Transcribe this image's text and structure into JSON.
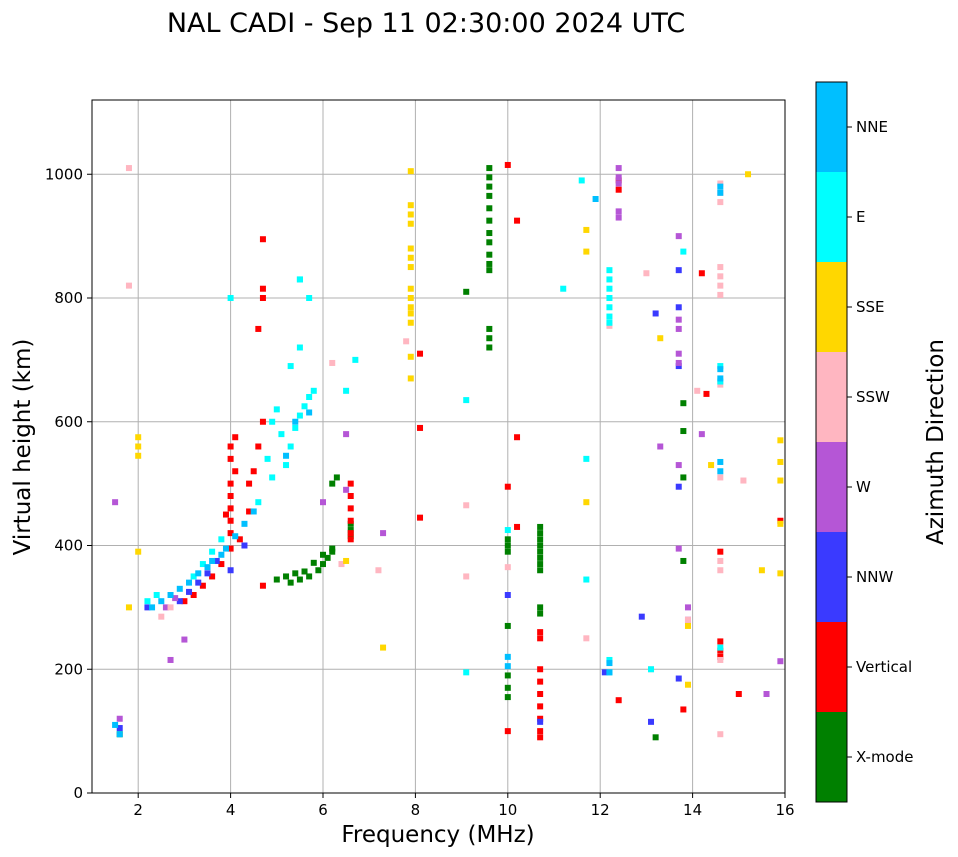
{
  "chart_data": {
    "type": "scatter",
    "title": "NAL CADI - Sep 11 02:30:00 2024 UTC",
    "xlabel": "Frequency (MHz)",
    "ylabel": "Virtual height (km)",
    "xlim": [
      1,
      16
    ],
    "ylim": [
      0,
      1120
    ],
    "xticks": [
      2,
      4,
      6,
      8,
      10,
      12,
      14,
      16
    ],
    "yticks": [
      0,
      200,
      400,
      600,
      800,
      1000
    ],
    "grid": true,
    "colorbar": {
      "label": "Azimuth Direction",
      "categories": [
        {
          "name": "X-mode",
          "color": "#008000"
        },
        {
          "name": "Vertical",
          "color": "#ff0000"
        },
        {
          "name": "NNW",
          "color": "#3a3aff"
        },
        {
          "name": "W",
          "color": "#b556d6"
        },
        {
          "name": "SSW",
          "color": "#ffb6c1"
        },
        {
          "name": "SSE",
          "color": "#ffd700"
        },
        {
          "name": "E",
          "color": "#00ffff"
        },
        {
          "name": "NNE",
          "color": "#00bfff"
        }
      ]
    },
    "series": [
      {
        "name": "X-mode",
        "points": [
          [
            5.3,
            340
          ],
          [
            5.5,
            345
          ],
          [
            5.7,
            350
          ],
          [
            5.9,
            360
          ],
          [
            6.0,
            370
          ],
          [
            6.1,
            380
          ],
          [
            6.2,
            390
          ],
          [
            5.6,
            358
          ],
          [
            5.8,
            372
          ],
          [
            6.0,
            385
          ],
          [
            6.2,
            395
          ],
          [
            5.4,
            355
          ],
          [
            5.2,
            350
          ],
          [
            5.0,
            345
          ],
          [
            6.6,
            415
          ],
          [
            6.6,
            425
          ],
          [
            6.6,
            435
          ],
          [
            6.2,
            500
          ],
          [
            6.3,
            510
          ],
          [
            9.6,
            1010
          ],
          [
            9.6,
            995
          ],
          [
            9.6,
            980
          ],
          [
            9.6,
            965
          ],
          [
            9.6,
            945
          ],
          [
            9.6,
            925
          ],
          [
            9.6,
            905
          ],
          [
            9.6,
            890
          ],
          [
            9.6,
            870
          ],
          [
            9.6,
            855
          ],
          [
            9.6,
            845
          ],
          [
            9.1,
            810
          ],
          [
            9.6,
            750
          ],
          [
            9.6,
            735
          ],
          [
            9.6,
            720
          ],
          [
            10.0,
            410
          ],
          [
            10.0,
            400
          ],
          [
            10.0,
            390
          ],
          [
            10.7,
            430
          ],
          [
            10.7,
            420
          ],
          [
            10.7,
            410
          ],
          [
            10.7,
            400
          ],
          [
            10.7,
            390
          ],
          [
            10.7,
            380
          ],
          [
            10.7,
            370
          ],
          [
            10.7,
            360
          ],
          [
            10.7,
            300
          ],
          [
            10.7,
            290
          ],
          [
            10.0,
            270
          ],
          [
            10.0,
            190
          ],
          [
            10.0,
            170
          ],
          [
            10.0,
            155
          ],
          [
            13.2,
            90
          ],
          [
            13.8,
            630
          ],
          [
            13.8,
            585
          ],
          [
            13.8,
            510
          ],
          [
            13.8,
            375
          ],
          [
            1.6,
            95
          ]
        ]
      },
      {
        "name": "Vertical",
        "points": [
          [
            3.0,
            310
          ],
          [
            3.2,
            320
          ],
          [
            3.4,
            335
          ],
          [
            3.6,
            350
          ],
          [
            3.8,
            370
          ],
          [
            4.0,
            395
          ],
          [
            4.0,
            420
          ],
          [
            4.0,
            440
          ],
          [
            4.0,
            460
          ],
          [
            4.0,
            480
          ],
          [
            4.0,
            500
          ],
          [
            4.1,
            520
          ],
          [
            4.0,
            540
          ],
          [
            4.0,
            560
          ],
          [
            4.1,
            575
          ],
          [
            4.4,
            500
          ],
          [
            4.5,
            520
          ],
          [
            4.6,
            560
          ],
          [
            4.7,
            600
          ],
          [
            4.7,
            800
          ],
          [
            4.7,
            815
          ],
          [
            4.6,
            750
          ],
          [
            4.7,
            895
          ],
          [
            4.7,
            335
          ],
          [
            6.6,
            500
          ],
          [
            6.6,
            480
          ],
          [
            6.6,
            460
          ],
          [
            6.6,
            440
          ],
          [
            6.6,
            420
          ],
          [
            6.6,
            410
          ],
          [
            8.1,
            445
          ],
          [
            8.1,
            590
          ],
          [
            8.1,
            710
          ],
          [
            10.0,
            1015
          ],
          [
            10.2,
            925
          ],
          [
            10.2,
            575
          ],
          [
            10.2,
            430
          ],
          [
            10.0,
            495
          ],
          [
            10.0,
            100
          ],
          [
            10.7,
            260
          ],
          [
            10.7,
            250
          ],
          [
            10.7,
            200
          ],
          [
            10.7,
            180
          ],
          [
            10.7,
            160
          ],
          [
            10.7,
            140
          ],
          [
            10.7,
            120
          ],
          [
            10.7,
            100
          ],
          [
            10.7,
            90
          ],
          [
            12.4,
            990
          ],
          [
            12.4,
            975
          ],
          [
            12.4,
            150
          ],
          [
            13.8,
            135
          ],
          [
            14.2,
            840
          ],
          [
            14.3,
            645
          ],
          [
            14.6,
            390
          ],
          [
            14.6,
            245
          ],
          [
            14.6,
            230
          ],
          [
            14.6,
            220
          ],
          [
            15.0,
            160
          ],
          [
            15.9,
            440
          ],
          [
            4.4,
            455
          ],
          [
            3.9,
            450
          ],
          [
            4.2,
            410
          ]
        ]
      },
      {
        "name": "NNW",
        "points": [
          [
            2.9,
            310
          ],
          [
            3.1,
            325
          ],
          [
            3.3,
            340
          ],
          [
            3.5,
            355
          ],
          [
            3.7,
            375
          ],
          [
            4.0,
            360
          ],
          [
            4.3,
            400
          ],
          [
            10.0,
            320
          ],
          [
            10.7,
            115
          ],
          [
            12.1,
            195
          ],
          [
            12.9,
            285
          ],
          [
            13.1,
            115
          ],
          [
            13.2,
            775
          ],
          [
            13.7,
            845
          ],
          [
            13.7,
            785
          ],
          [
            13.7,
            690
          ],
          [
            13.7,
            495
          ],
          [
            13.7,
            185
          ],
          [
            1.6,
            105
          ],
          [
            2.2,
            300
          ]
        ]
      },
      {
        "name": "W",
        "points": [
          [
            2.6,
            300
          ],
          [
            2.8,
            315
          ],
          [
            2.7,
            215
          ],
          [
            3.0,
            248
          ],
          [
            1.5,
            470
          ],
          [
            1.6,
            120
          ],
          [
            6.0,
            470
          ],
          [
            6.5,
            490
          ],
          [
            6.5,
            580
          ],
          [
            7.3,
            420
          ],
          [
            12.4,
            1010
          ],
          [
            12.4,
            995
          ],
          [
            12.4,
            985
          ],
          [
            12.4,
            940
          ],
          [
            12.4,
            930
          ],
          [
            13.3,
            560
          ],
          [
            13.7,
            900
          ],
          [
            13.7,
            765
          ],
          [
            13.7,
            750
          ],
          [
            13.7,
            710
          ],
          [
            13.7,
            695
          ],
          [
            13.7,
            530
          ],
          [
            13.7,
            395
          ],
          [
            13.9,
            300
          ],
          [
            13.9,
            280
          ],
          [
            14.2,
            580
          ],
          [
            15.6,
            160
          ],
          [
            15.9,
            213
          ]
        ]
      },
      {
        "name": "SSW",
        "points": [
          [
            2.5,
            285
          ],
          [
            2.7,
            300
          ],
          [
            6.2,
            695
          ],
          [
            6.4,
            370
          ],
          [
            7.2,
            360
          ],
          [
            7.8,
            730
          ],
          [
            9.1,
            465
          ],
          [
            9.1,
            350
          ],
          [
            10.0,
            365
          ],
          [
            11.7,
            250
          ],
          [
            12.2,
            755
          ],
          [
            13.0,
            840
          ],
          [
            13.1,
            200
          ],
          [
            13.9,
            280
          ],
          [
            14.1,
            650
          ],
          [
            14.6,
            985
          ],
          [
            14.6,
            970
          ],
          [
            14.6,
            955
          ],
          [
            14.6,
            850
          ],
          [
            14.6,
            835
          ],
          [
            14.6,
            820
          ],
          [
            14.6,
            805
          ],
          [
            14.6,
            660
          ],
          [
            14.6,
            510
          ],
          [
            14.6,
            375
          ],
          [
            14.6,
            360
          ],
          [
            14.6,
            215
          ],
          [
            14.6,
            95
          ],
          [
            15.1,
            505
          ],
          [
            1.8,
            820
          ],
          [
            1.8,
            1010
          ]
        ]
      },
      {
        "name": "SSE",
        "points": [
          [
            2.0,
            575
          ],
          [
            2.0,
            560
          ],
          [
            2.0,
            545
          ],
          [
            2.0,
            390
          ],
          [
            1.8,
            300
          ],
          [
            7.9,
            1005
          ],
          [
            7.9,
            950
          ],
          [
            7.9,
            935
          ],
          [
            7.9,
            920
          ],
          [
            7.9,
            880
          ],
          [
            7.9,
            865
          ],
          [
            7.9,
            850
          ],
          [
            7.9,
            815
          ],
          [
            7.9,
            800
          ],
          [
            7.9,
            785
          ],
          [
            7.9,
            775
          ],
          [
            7.9,
            760
          ],
          [
            7.9,
            705
          ],
          [
            7.9,
            670
          ],
          [
            11.7,
            910
          ],
          [
            11.7,
            875
          ],
          [
            11.7,
            470
          ],
          [
            13.3,
            735
          ],
          [
            13.9,
            270
          ],
          [
            13.9,
            175
          ],
          [
            14.4,
            530
          ],
          [
            15.2,
            1000
          ],
          [
            15.5,
            360
          ],
          [
            15.9,
            570
          ],
          [
            15.9,
            535
          ],
          [
            15.9,
            505
          ],
          [
            15.9,
            435
          ],
          [
            15.9,
            355
          ],
          [
            7.3,
            235
          ],
          [
            6.5,
            375
          ]
        ]
      },
      {
        "name": "E",
        "points": [
          [
            5.2,
            530
          ],
          [
            5.3,
            560
          ],
          [
            5.4,
            590
          ],
          [
            5.5,
            610
          ],
          [
            5.6,
            625
          ],
          [
            5.7,
            640
          ],
          [
            5.8,
            650
          ],
          [
            5.3,
            690
          ],
          [
            5.5,
            720
          ],
          [
            5.7,
            800
          ],
          [
            5.5,
            830
          ],
          [
            4.9,
            600
          ],
          [
            5.0,
            620
          ],
          [
            5.1,
            580
          ],
          [
            4.6,
            470
          ],
          [
            4.8,
            540
          ],
          [
            4.9,
            510
          ],
          [
            6.5,
            650
          ],
          [
            6.7,
            700
          ],
          [
            3.2,
            350
          ],
          [
            3.4,
            370
          ],
          [
            3.6,
            390
          ],
          [
            3.8,
            410
          ],
          [
            2.2,
            310
          ],
          [
            2.4,
            320
          ],
          [
            9.1,
            635
          ],
          [
            9.1,
            195
          ],
          [
            10.0,
            425
          ],
          [
            11.2,
            815
          ],
          [
            11.6,
            990
          ],
          [
            11.7,
            540
          ],
          [
            11.7,
            345
          ],
          [
            12.2,
            845
          ],
          [
            12.2,
            830
          ],
          [
            12.2,
            815
          ],
          [
            12.2,
            800
          ],
          [
            12.2,
            785
          ],
          [
            12.2,
            770
          ],
          [
            12.2,
            760
          ],
          [
            12.2,
            215
          ],
          [
            12.2,
            195
          ],
          [
            13.1,
            200
          ],
          [
            13.8,
            875
          ],
          [
            14.6,
            690
          ],
          [
            14.6,
            665
          ],
          [
            14.6,
            235
          ],
          [
            4.0,
            800
          ],
          [
            5.5,
            830
          ]
        ]
      },
      {
        "name": "NNE",
        "points": [
          [
            2.3,
            300
          ],
          [
            2.5,
            310
          ],
          [
            2.7,
            320
          ],
          [
            2.9,
            330
          ],
          [
            3.1,
            340
          ],
          [
            3.3,
            355
          ],
          [
            3.5,
            365
          ],
          [
            3.6,
            375
          ],
          [
            3.8,
            385
          ],
          [
            3.9,
            395
          ],
          [
            4.1,
            415
          ],
          [
            4.3,
            435
          ],
          [
            4.5,
            455
          ],
          [
            5.2,
            545
          ],
          [
            5.4,
            600
          ],
          [
            5.7,
            615
          ],
          [
            10.0,
            220
          ],
          [
            10.0,
            205
          ],
          [
            11.9,
            960
          ],
          [
            12.2,
            210
          ],
          [
            12.2,
            195
          ],
          [
            14.6,
            980
          ],
          [
            14.6,
            970
          ],
          [
            14.6,
            685
          ],
          [
            14.6,
            670
          ],
          [
            14.6,
            535
          ],
          [
            14.6,
            520
          ],
          [
            1.5,
            110
          ],
          [
            1.6,
            95
          ]
        ]
      }
    ]
  }
}
